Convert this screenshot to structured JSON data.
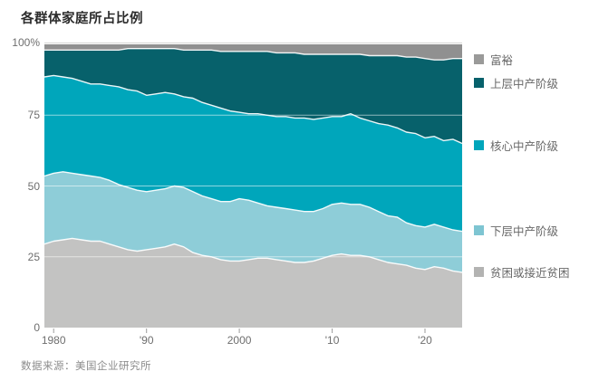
{
  "title": "各群体家庭所占比例",
  "source": "数据来源：美国企业研究所",
  "colors": {
    "background": "#ffffff",
    "band_stroke": "#ffffff",
    "grid_inner": "rgba(255,255,255,0.55)",
    "grid_top": "#d6d6d4",
    "axis_tick": "#9b9b9b",
    "axis_text": "#6e6e6e",
    "title_text": "#2b2b2b",
    "source_text": "#8c8c8c"
  },
  "legend": {
    "items": [
      {
        "label": "富裕",
        "color": "#9a9a99"
      },
      {
        "label": "上层中产阶级",
        "color": "#07616b"
      },
      {
        "label": "核心中产阶级",
        "color": "#00a6bb"
      },
      {
        "label": "下层中产阶级",
        "color": "#7ec5d2"
      },
      {
        "label": "贫困或接近贫困",
        "color": "#b3b3b2"
      }
    ]
  },
  "chart_data": {
    "type": "area",
    "stacked": true,
    "title": "各群体家庭所占比例",
    "unit": "%",
    "ylim": [
      0,
      100
    ],
    "grid": "horizontal semi-transparent white lines at 25/50/75, light gray line at 100",
    "legend_position": "right",
    "x": [
      1979,
      1980,
      1981,
      1982,
      1983,
      1984,
      1985,
      1986,
      1987,
      1988,
      1989,
      1990,
      1991,
      1992,
      1993,
      1994,
      1995,
      1996,
      1997,
      1998,
      1999,
      2000,
      2001,
      2002,
      2003,
      2004,
      2005,
      2006,
      2007,
      2008,
      2009,
      2010,
      2011,
      2012,
      2013,
      2014,
      2015,
      2016,
      2017,
      2018,
      2019,
      2020,
      2021,
      2022,
      2023,
      2024
    ],
    "series": [
      {
        "name": "贫困或接近贫困",
        "color": "#c3c3c2",
        "values": [
          29.5,
          30.5,
          31,
          31.5,
          31,
          30.5,
          30.5,
          29.5,
          28.5,
          27.5,
          27,
          27.5,
          28,
          28.5,
          29.5,
          28.5,
          26.5,
          25.5,
          25,
          24,
          23.5,
          23.5,
          24,
          24.5,
          24.5,
          24,
          23.5,
          23,
          23,
          23.5,
          24.5,
          25.5,
          26,
          25.5,
          25.5,
          25,
          24,
          23,
          22.5,
          22,
          21,
          20.5,
          21.5,
          21,
          20,
          19.5
        ]
      },
      {
        "name": "下层中产阶级",
        "color": "#8ecdd8",
        "values": [
          24,
          24,
          24,
          23,
          23,
          23,
          22.5,
          22.5,
          22,
          22,
          21.5,
          20.5,
          20.5,
          20.5,
          20.5,
          21,
          21.5,
          21,
          20.5,
          20.5,
          21,
          22,
          21,
          19.5,
          18.5,
          18.5,
          18.5,
          18.5,
          18,
          17.5,
          17.5,
          18,
          18,
          18,
          18,
          17.5,
          17,
          16.5,
          16.5,
          15,
          15,
          15,
          15,
          14.5,
          14.5,
          14.5
        ]
      },
      {
        "name": "核心中产阶级",
        "color": "#00a6bb",
        "values": [
          35,
          34.5,
          33.5,
          33.5,
          33,
          32.5,
          33,
          33.5,
          34.5,
          34.5,
          35,
          34,
          34,
          34,
          32.5,
          32,
          33,
          33,
          33,
          33,
          32,
          30.5,
          30.5,
          31.5,
          32,
          32,
          32.5,
          32.5,
          33,
          32.5,
          32,
          31,
          30.5,
          32,
          30.5,
          30.5,
          31,
          32,
          31.5,
          32,
          32.5,
          31.5,
          31,
          30.5,
          32,
          31
        ]
      },
      {
        "name": "上层中产阶级",
        "color": "#07616b",
        "values": [
          9.5,
          9,
          9.5,
          10,
          11,
          12,
          12,
          12.5,
          13,
          14.5,
          15,
          16.5,
          16,
          15.5,
          16,
          16.5,
          17,
          18.5,
          19.5,
          20,
          21,
          21.5,
          22,
          22,
          22.5,
          22.5,
          22.5,
          23,
          22.5,
          23,
          22.5,
          22,
          22,
          21,
          22.5,
          23,
          24,
          24.5,
          25.5,
          26.5,
          27,
          28,
          27,
          28.5,
          28.5,
          30
        ]
      },
      {
        "name": "富裕",
        "color": "#909090",
        "values": [
          2,
          2,
          2,
          2,
          2,
          2,
          2,
          2,
          2,
          1.5,
          1.5,
          1.5,
          1.5,
          1.5,
          1.5,
          2,
          2,
          2,
          2,
          2.5,
          2.5,
          2.5,
          2.5,
          2.5,
          2.5,
          3,
          3,
          3,
          3.5,
          3.5,
          3.5,
          3.5,
          3.5,
          3.5,
          3.5,
          4,
          4,
          4,
          4,
          4.5,
          4.5,
          5,
          5.5,
          5.5,
          5,
          5
        ]
      }
    ],
    "y_ticks": [
      {
        "label": "100%",
        "value": 100
      },
      {
        "label": "75",
        "value": 75
      },
      {
        "label": "50",
        "value": 50
      },
      {
        "label": "25",
        "value": 25
      },
      {
        "label": "0",
        "value": 0
      }
    ],
    "x_ticks": [
      {
        "label": "1980",
        "year": 1980
      },
      {
        "label": "'90",
        "year": 1990
      },
      {
        "label": "2000",
        "year": 2000
      },
      {
        "label": "'10",
        "year": 2010
      },
      {
        "label": "'20",
        "year": 2020
      }
    ]
  }
}
